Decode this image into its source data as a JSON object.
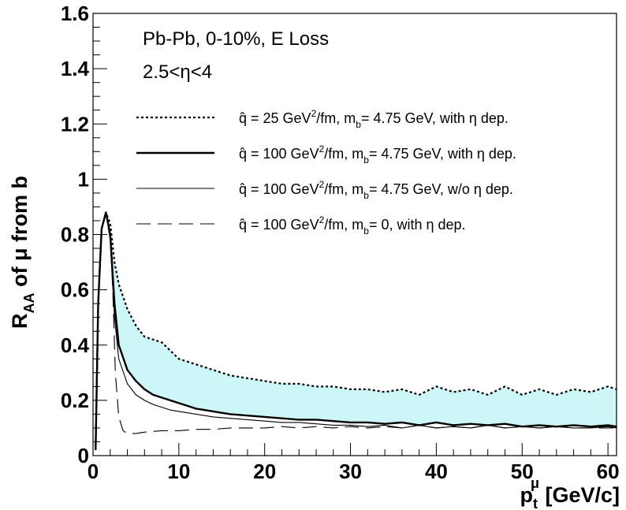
{
  "chart_data": {
    "type": "line",
    "info": [
      "Pb-Pb, 0-10%, E Loss",
      "2.5<η<4"
    ],
    "xlabel": {
      "main": "p",
      "sub": "t",
      "sup": "μ",
      "unit": " [GeV/c]"
    },
    "ylabel": {
      "main": "R",
      "sub": "AA",
      "rest": " of μ from b"
    },
    "xlim": [
      0,
      61
    ],
    "ylim": [
      0,
      1.6
    ],
    "x_ticks": [
      "0",
      "10",
      "20",
      "30",
      "40",
      "50",
      "60"
    ],
    "y_ticks": [
      "0",
      "0.2",
      "0.4",
      "0.6",
      "0.8",
      "1",
      "1.2",
      "1.4",
      "1.6"
    ],
    "band_color": "#cdf6f8",
    "series": [
      {
        "name": "q̂ = 25 GeV²/fm, m_b = 4.75 GeV, with η dep.",
        "legend": {
          "p1": "q̂ = 25 GeV",
          "p1sup": "2",
          "p2": "/fm, m",
          "p2sub": "b",
          "p3": "= 4.75 GeV, with η dep."
        },
        "style": "dotted",
        "x": [
          0.3,
          0.6,
          1.0,
          1.5,
          2.0,
          2.5,
          3.0,
          4.0,
          5.0,
          6.0,
          7.0,
          8.0,
          9.0,
          10.0,
          12.0,
          14.0,
          16.0,
          18.0,
          20.0,
          22.0,
          24.0,
          26.0,
          28.0,
          30.0,
          32.0,
          34.0,
          36.0,
          38.0,
          40.0,
          42.0,
          44.0,
          46.0,
          48.0,
          50.0,
          52.0,
          54.0,
          56.0,
          58.0,
          60.0,
          61.0
        ],
        "y": [
          0.02,
          0.55,
          0.82,
          0.88,
          0.84,
          0.7,
          0.62,
          0.53,
          0.47,
          0.43,
          0.42,
          0.41,
          0.38,
          0.35,
          0.33,
          0.31,
          0.29,
          0.28,
          0.27,
          0.26,
          0.26,
          0.25,
          0.25,
          0.24,
          0.24,
          0.23,
          0.24,
          0.22,
          0.25,
          0.23,
          0.24,
          0.22,
          0.25,
          0.22,
          0.24,
          0.22,
          0.24,
          0.23,
          0.25,
          0.24
        ]
      },
      {
        "name": "q̂ = 100 GeV²/fm, m_b = 4.75 GeV, with η dep.",
        "legend": {
          "p1": "q̂ = 100 GeV",
          "p1sup": "2",
          "p2": "/fm, m",
          "p2sub": "b",
          "p3": "= 4.75 GeV, with η dep."
        },
        "style": "thick",
        "x": [
          0.3,
          0.6,
          1.0,
          1.5,
          2.0,
          2.5,
          3.0,
          4.0,
          5.0,
          6.0,
          7.0,
          8.0,
          9.0,
          10.0,
          12.0,
          14.0,
          16.0,
          18.0,
          20.0,
          22.0,
          24.0,
          26.0,
          28.0,
          30.0,
          32.0,
          34.0,
          36.0,
          38.0,
          40.0,
          42.0,
          44.0,
          46.0,
          48.0,
          50.0,
          52.0,
          54.0,
          56.0,
          58.0,
          60.0,
          61.0
        ],
        "y": [
          0.02,
          0.55,
          0.82,
          0.88,
          0.8,
          0.55,
          0.4,
          0.31,
          0.27,
          0.24,
          0.22,
          0.21,
          0.2,
          0.19,
          0.17,
          0.16,
          0.15,
          0.145,
          0.14,
          0.135,
          0.13,
          0.13,
          0.125,
          0.12,
          0.12,
          0.115,
          0.12,
          0.11,
          0.12,
          0.11,
          0.115,
          0.11,
          0.115,
          0.105,
          0.11,
          0.105,
          0.11,
          0.105,
          0.11,
          0.105
        ]
      },
      {
        "name": "q̂ = 100 GeV²/fm, m_b = 4.75 GeV, w/o η dep.",
        "legend": {
          "p1": "q̂ = 100 GeV",
          "p1sup": "2",
          "p2": "/fm, m",
          "p2sub": "b",
          "p3": "= 4.75 GeV, w/o η dep."
        },
        "style": "thin",
        "x": [
          0.3,
          0.6,
          1.0,
          1.5,
          2.0,
          2.5,
          3.0,
          4.0,
          5.0,
          6.0,
          7.0,
          8.0,
          9.0,
          10.0,
          12.0,
          14.0,
          16.0,
          18.0,
          20.0,
          22.0,
          24.0,
          26.0,
          28.0,
          30.0,
          32.0,
          34.0,
          36.0,
          38.0,
          40.0,
          42.0,
          44.0,
          46.0,
          48.0,
          50.0,
          52.0,
          54.0,
          56.0,
          58.0,
          60.0,
          61.0
        ],
        "y": [
          0.02,
          0.55,
          0.82,
          0.88,
          0.78,
          0.5,
          0.35,
          0.26,
          0.22,
          0.2,
          0.185,
          0.175,
          0.165,
          0.16,
          0.15,
          0.14,
          0.135,
          0.13,
          0.125,
          0.12,
          0.12,
          0.115,
          0.11,
          0.11,
          0.105,
          0.11,
          0.1,
          0.11,
          0.1,
          0.105,
          0.1,
          0.11,
          0.1,
          0.105,
          0.1,
          0.105,
          0.1,
          0.1,
          0.105,
          0.1
        ]
      },
      {
        "name": "q̂ = 100 GeV²/fm, m_b = 0, with η dep.",
        "legend": {
          "p1": "q̂ = 100 GeV",
          "p1sup": "2",
          "p2": "/fm, m",
          "p2sub": "b",
          "p3": "= 0, with η dep."
        },
        "style": "dashed",
        "x": [
          0.3,
          0.6,
          1.0,
          1.5,
          2.0,
          2.3,
          2.6,
          3.0,
          3.5,
          4.0,
          5.0,
          6.0,
          8.0,
          10.0,
          12.0,
          14.0,
          16.0,
          18.0,
          20.0,
          22.0,
          24.0,
          26.0,
          28.0,
          30.0,
          32.0,
          34.0,
          36.0,
          38.0,
          40.0,
          42.0,
          44.0,
          46.0,
          48.0,
          50.0,
          52.0,
          54.0,
          56.0,
          58.0,
          60.0,
          61.0
        ],
        "y": [
          0.02,
          0.55,
          0.82,
          0.88,
          0.8,
          0.6,
          0.3,
          0.14,
          0.09,
          0.08,
          0.08,
          0.085,
          0.09,
          0.09,
          0.095,
          0.095,
          0.1,
          0.1,
          0.1,
          0.105,
          0.1,
          0.105,
          0.1,
          0.105,
          0.1,
          0.105,
          0.1,
          0.11,
          0.1,
          0.105,
          0.1,
          0.11,
          0.1,
          0.105,
          0.1,
          0.105,
          0.1,
          0.1,
          0.1,
          0.1
        ]
      }
    ]
  }
}
